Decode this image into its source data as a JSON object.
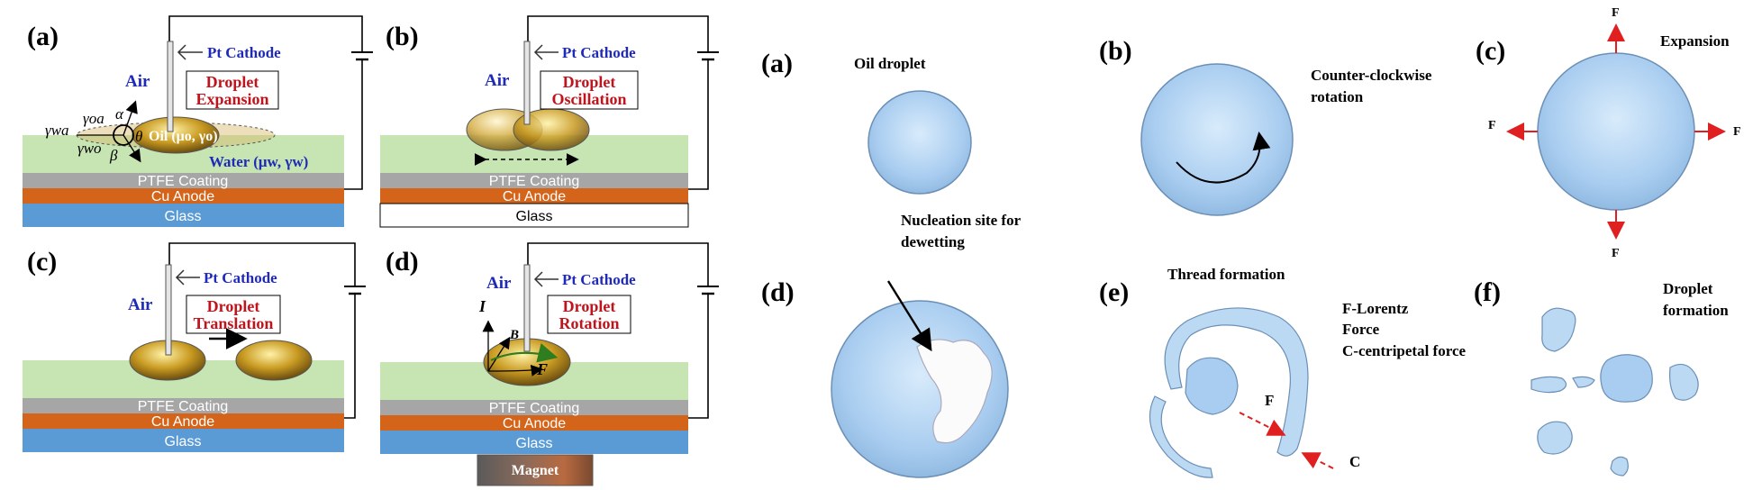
{
  "left": {
    "a": {
      "label": "(a)",
      "cathode": "Pt Cathode",
      "air": "Air",
      "box_line1": "Droplet",
      "box_line2": "Expansion",
      "oil": "Oil (μo, γo)",
      "water": "Water (μw, γw)",
      "gamma_oa": "γoa",
      "gamma_wa": "γwa",
      "gamma_wo": "γwo",
      "alpha": "α",
      "beta": "β",
      "theta": "θ",
      "ptfe": "PTFE Coating",
      "anode": "Cu Anode",
      "glass": "Glass"
    },
    "b": {
      "label": "(b)",
      "cathode": "Pt Cathode",
      "air": "Air",
      "box_line1": "Droplet",
      "box_line2": "Oscillation",
      "ptfe": "PTFE Coating",
      "anode": "Cu Anode",
      "glass": "Glass"
    },
    "c": {
      "label": "(c)",
      "cathode": "Pt Cathode",
      "air": "Air",
      "box_line1": "Droplet",
      "box_line2": "Translation",
      "ptfe": "PTFE Coating",
      "anode": "Cu Anode",
      "glass": "Glass"
    },
    "d": {
      "label": "(d)",
      "cathode": "Pt Cathode",
      "air": "Air",
      "box_line1": "Droplet",
      "box_line2": "Rotation",
      "sym_I": "I",
      "sym_B": "B",
      "sym_F": "F",
      "ptfe": "PTFE Coating",
      "anode": "Cu Anode",
      "glass": "Glass",
      "magnet": "Magnet"
    }
  },
  "right": {
    "a": {
      "label": "(a)",
      "caption": "Oil droplet"
    },
    "b": {
      "label": "(b)",
      "caption_line1": "Counter-clockwise",
      "caption_line2": "rotation"
    },
    "c": {
      "label": "(c)",
      "caption": "Expansion",
      "force": "F"
    },
    "d": {
      "label": "(d)",
      "caption_line1": "Nucleation site for",
      "caption_line2": "dewetting"
    },
    "e": {
      "label": "(e)",
      "caption": "Thread formation",
      "legend_line1": "F-Lorentz",
      "legend_line2": "Force",
      "legend_line3": "C-centripetal force",
      "mark_F": "F",
      "mark_C": "C"
    },
    "f": {
      "label": "(f)",
      "caption_line1": "Droplet",
      "caption_line2": "formation"
    }
  },
  "colors": {
    "water": "#c6e5b3",
    "ptfe": "#a6a6a6",
    "anode": "#d46419",
    "glass": "#5b9bd5",
    "droplet_gold": "#c69a24",
    "blue_text": "#1f2ab8",
    "red_text": "#c0141c",
    "arrow_red": "#e02020",
    "bubble": "#bcd9f4"
  }
}
